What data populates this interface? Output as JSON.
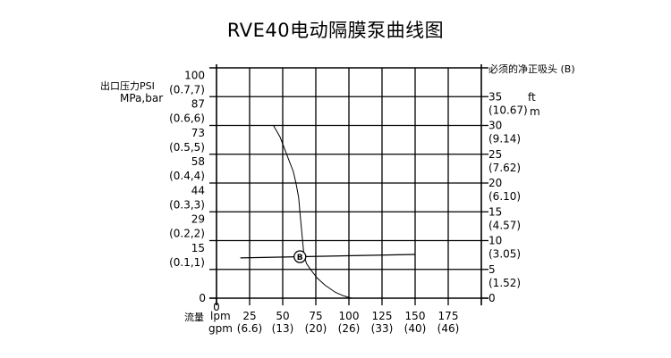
{
  "title": "RVE40电动隔膜泵曲线图",
  "chart_data": {
    "type": "line",
    "title": "RVE40电动隔膜泵曲线图",
    "xlabel": "流量",
    "x_units": [
      "lpm",
      "gpm"
    ],
    "x_ticks": [
      {
        "lpm": 0,
        "gpm": ""
      },
      {
        "lpm": 25,
        "gpm": "(6.6)"
      },
      {
        "lpm": 50,
        "gpm": "(13)"
      },
      {
        "lpm": 75,
        "gpm": "(20)"
      },
      {
        "lpm": 100,
        "gpm": "(26)"
      },
      {
        "lpm": 125,
        "gpm": "(33)"
      },
      {
        "lpm": 150,
        "gpm": "(40)"
      },
      {
        "lpm": 175,
        "gpm": "(46)"
      }
    ],
    "xlim": [
      0,
      200
    ],
    "ylabel_left": [
      "出口压力PSI",
      "MPa,bar"
    ],
    "y_left_ticks": [
      {
        "mpa": 0,
        "psi": "0",
        "mpa_label": ""
      },
      {
        "mpa": 0.1,
        "psi": "15",
        "mpa_label": "(0.1,1)"
      },
      {
        "mpa": 0.2,
        "psi": "29",
        "mpa_label": "(0.2,2)"
      },
      {
        "mpa": 0.3,
        "psi": "44",
        "mpa_label": "(0.3,3)"
      },
      {
        "mpa": 0.4,
        "psi": "58",
        "mpa_label": "(0.4,4)"
      },
      {
        "mpa": 0.5,
        "psi": "73",
        "mpa_label": "(0.5,5)"
      },
      {
        "mpa": 0.6,
        "psi": "87",
        "mpa_label": "(0.6,6)"
      },
      {
        "mpa": 0.7,
        "psi": "100",
        "mpa_label": "(0.7,7)"
      }
    ],
    "ylim": [
      0,
      0.8
    ],
    "ylabel_right": "必须的净正吸头 (B)",
    "y_right_units": [
      "ft",
      "m"
    ],
    "y_right_ticks": [
      {
        "ft": 0,
        "m": ""
      },
      {
        "ft": 5,
        "m": "(1.52)"
      },
      {
        "ft": 10,
        "m": "(3.05)"
      },
      {
        "ft": 15,
        "m": "(4.57)"
      },
      {
        "ft": 20,
        "m": "(6.10)"
      },
      {
        "ft": 25,
        "m": "(7.62)"
      },
      {
        "ft": 30,
        "m": "(9.14)"
      },
      {
        "ft": 35,
        "m": "(10.67)"
      }
    ],
    "y_right_lim": [
      0,
      40
    ],
    "grid": true,
    "series": [
      {
        "x": [
          43,
          48,
          53,
          58,
          60,
          62,
          63,
          64,
          65,
          66,
          68,
          71,
          76,
          82,
          90,
          96,
          102
        ],
        "y": [
          0.6,
          0.56,
          0.5,
          0.44,
          0.4,
          0.35,
          0.3,
          0.25,
          0.2,
          0.15,
          0.12,
          0.1,
          0.07,
          0.045,
          0.02,
          0.008,
          0.0
        ]
      }
    ],
    "npshr_line": {
      "label": "B",
      "x": [
        18,
        150
      ],
      "y_ft": [
        7.0,
        7.6
      ],
      "marker_x": 63
    }
  }
}
